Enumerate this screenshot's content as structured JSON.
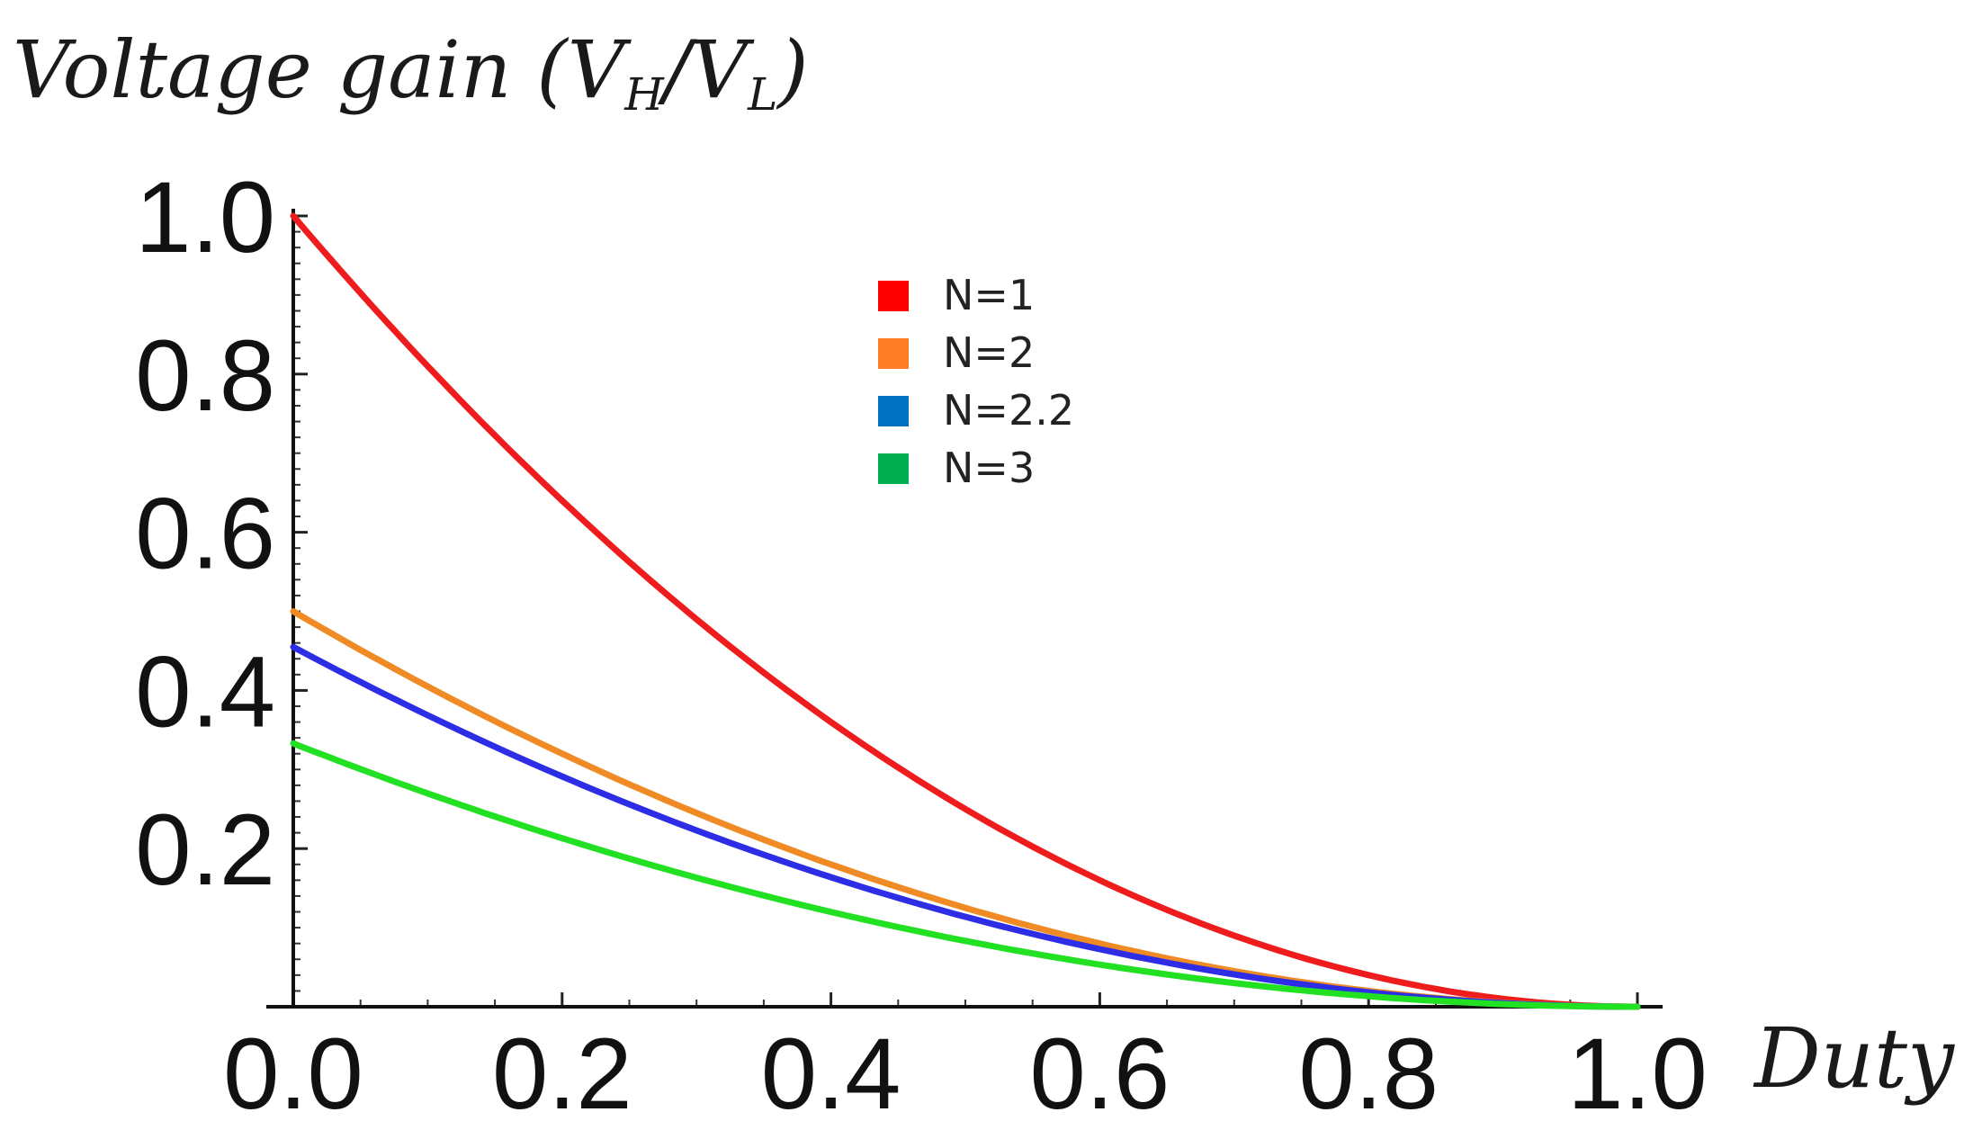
{
  "chart_data": {
    "type": "line",
    "title": "",
    "ylabel": {
      "main": "Voltage gain (V",
      "sub1": "H",
      "slash": "/V",
      "sub2": "L",
      "close": ")"
    },
    "xlabel": "Duty",
    "xlim": [
      0,
      1
    ],
    "ylim": [
      0,
      1
    ],
    "x_ticks": [
      "0.0",
      "0.2",
      "0.4",
      "0.6",
      "0.8",
      "1.0"
    ],
    "y_ticks": [
      "0.2",
      "0.4",
      "0.6",
      "0.8",
      "1.0"
    ],
    "y_tick_values": [
      0.2,
      0.4,
      0.6,
      0.8,
      1.0
    ],
    "x_tick_values": [
      0,
      0.2,
      0.4,
      0.6,
      0.8,
      1.0
    ],
    "legend_position": "top-center",
    "x": [
      0,
      0.1,
      0.2,
      0.3,
      0.4,
      0.5,
      0.6,
      0.7,
      0.8,
      0.9,
      1.0
    ],
    "series": [
      {
        "name": "N=1",
        "color": "#ee1c1c",
        "legend_color": "#ff0000",
        "values": [
          1.0,
          0.81,
          0.64,
          0.49,
          0.36,
          0.25,
          0.16,
          0.09,
          0.04,
          0.01,
          0.0
        ]
      },
      {
        "name": "N=2",
        "color": "#f08a24",
        "legend_color": "#ff7f27",
        "values": [
          0.5,
          0.405,
          0.32,
          0.245,
          0.18,
          0.125,
          0.08,
          0.045,
          0.02,
          0.005,
          0.0
        ]
      },
      {
        "name": "N=2.2",
        "color": "#2d2de6",
        "legend_color": "#0070c0",
        "values": [
          0.455,
          0.368,
          0.291,
          0.223,
          0.164,
          0.114,
          0.073,
          0.041,
          0.018,
          0.005,
          0.0
        ]
      },
      {
        "name": "N=3",
        "color": "#22e022",
        "legend_color": "#00b050",
        "values": [
          0.333,
          0.27,
          0.213,
          0.163,
          0.12,
          0.083,
          0.053,
          0.03,
          0.013,
          0.003,
          0.0
        ]
      }
    ]
  }
}
